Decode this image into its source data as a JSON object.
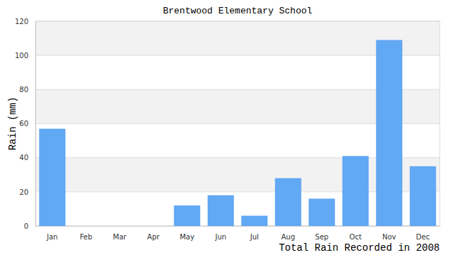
{
  "chart_data": {
    "type": "bar",
    "title": "Brentwood Elementary School",
    "x_label": "Total Rain Recorded in 2008",
    "y_label": "Rain (mm)",
    "categories": [
      "Jan",
      "Feb",
      "Mar",
      "Apr",
      "May",
      "Jun",
      "Jul",
      "Aug",
      "Sep",
      "Oct",
      "Nov",
      "Dec"
    ],
    "values": [
      57,
      0,
      0,
      0,
      12,
      18,
      6,
      28,
      16,
      41,
      109,
      35
    ],
    "color": "#61a8f5",
    "ylim": [
      0,
      120
    ],
    "yticks": [
      0,
      20,
      40,
      60,
      80,
      100,
      120
    ],
    "grid": true
  }
}
